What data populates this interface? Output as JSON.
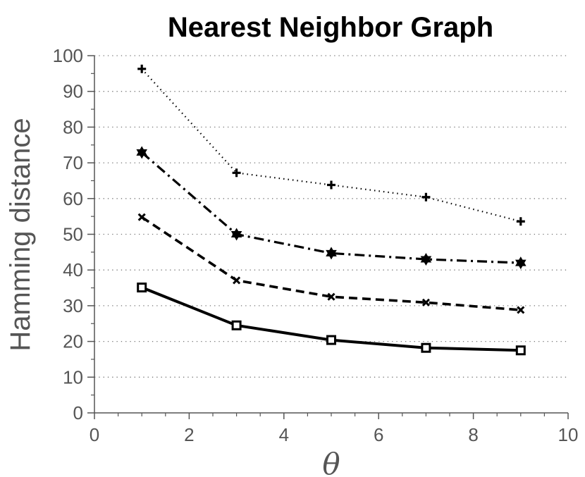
{
  "chart_data": {
    "type": "line",
    "title": "Nearest Neighbor Graph",
    "xlabel": "θ",
    "ylabel": "Hamming distance",
    "xlim": [
      0,
      10
    ],
    "ylim": [
      0,
      100
    ],
    "x_ticks": [
      "0",
      "2",
      "4",
      "6",
      "8",
      "10"
    ],
    "y_ticks": [
      "0",
      "10",
      "20",
      "30",
      "40",
      "50",
      "60",
      "70",
      "80",
      "90",
      "100"
    ],
    "grid": "horizontal dotted",
    "x": [
      1,
      3,
      5,
      7,
      9
    ],
    "series": [
      {
        "values": [
          96.3,
          67.2,
          63.8,
          60.4,
          53.6
        ],
        "line_style": "dotted",
        "marker": "plus"
      },
      {
        "values": [
          72.9,
          50.0,
          44.7,
          43.0,
          42.0
        ],
        "line_style": "dash-dot",
        "marker": "star"
      },
      {
        "values": [
          54.8,
          37.1,
          32.5,
          30.9,
          28.8
        ],
        "line_style": "dashed",
        "marker": "x"
      },
      {
        "values": [
          35.1,
          24.5,
          20.4,
          18.2,
          17.5
        ],
        "line_style": "solid",
        "marker": "square"
      }
    ]
  }
}
